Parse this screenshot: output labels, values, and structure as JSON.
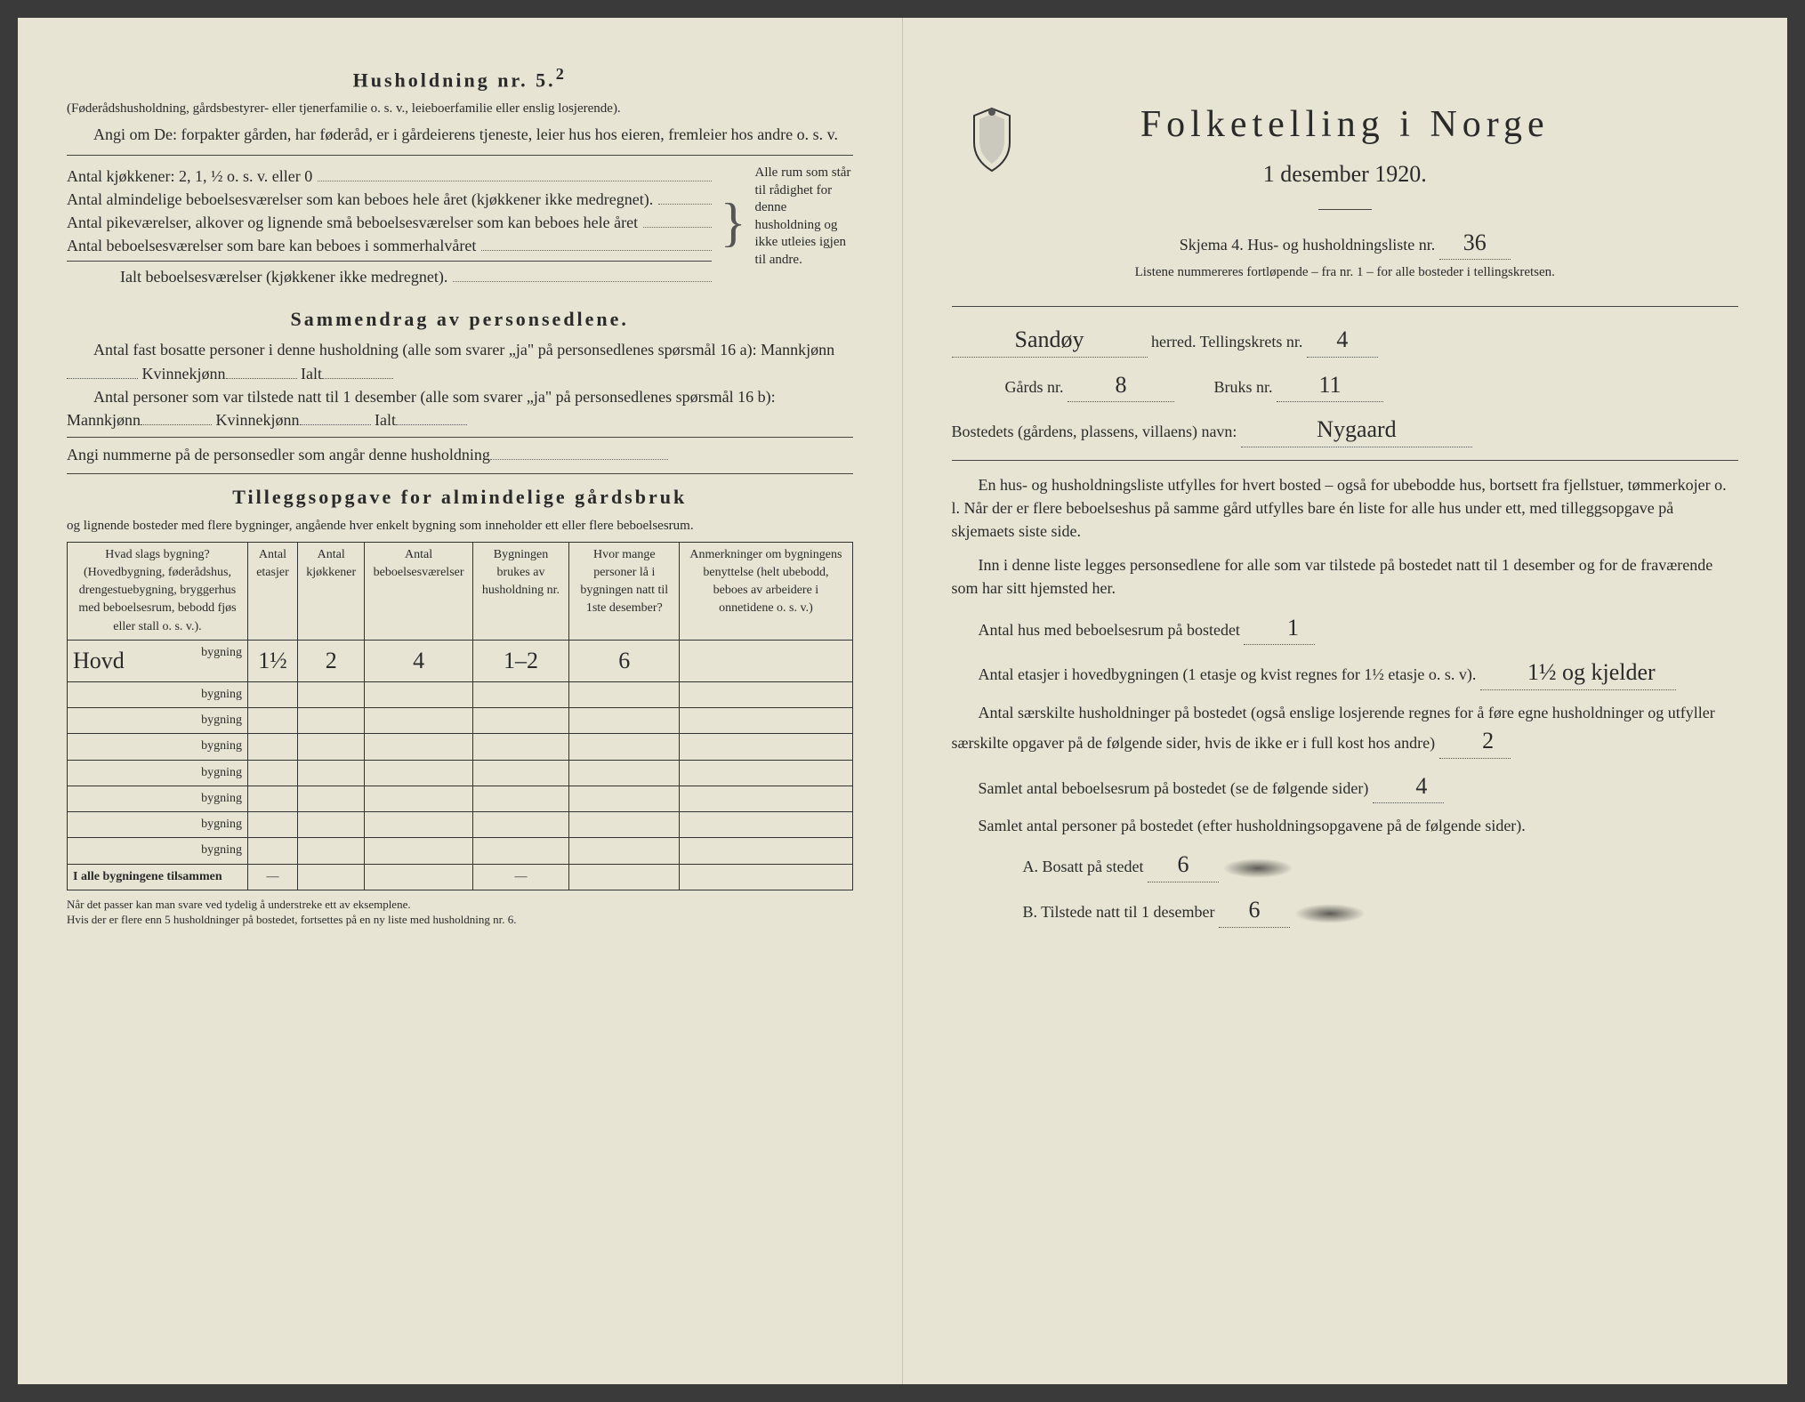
{
  "left": {
    "heading": "Husholdning nr. 5.",
    "heading_sup": "2",
    "par1": "(Føderådshusholdning, gårdsbestyrer- eller tjenerfamilie o. s. v., leieboerfamilie eller enslig losjerende).",
    "par2": "Angi om De:  forpakter gården, har føderåd, er i gårdeierens tjeneste, leier hus hos eieren, fremleier hos andre o. s. v.",
    "row_kjokkener": "Antal kjøkkener: 2, 1, ½ o. s. v. eller 0",
    "row_almindelige": "Antal almindelige beboelsesværelser som kan beboes hele året (kjøkkener ikke medregnet).",
    "row_pike": "Antal pikeværelser, alkover og lignende små beboelsesværelser som kan beboes hele året",
    "row_sommer": "Antal beboelsesværelser som bare kan beboes i sommerhalvåret",
    "row_ialt": "Ialt beboelsesværelser (kjøkkener ikke medregnet).",
    "brace_text": "Alle rum som står til rådighet for denne husholdning og ikke utleies igjen til andre.",
    "sammendrag_heading": "Sammendrag av personsedlene.",
    "sd1": "Antal fast bosatte personer i denne husholdning (alle som svarer „ja\" på personsedlenes spørsmål 16 a): Mannkjønn",
    "sd_kv": "Kvinnekjønn",
    "sd_ialt": "Ialt",
    "sd2": "Antal personer som var tilstede natt til 1 desember (alle som svarer „ja\" på personsedlenes spørsmål 16 b): Mannkjønn",
    "sd3": "Angi nummerne på de personsedler som angår denne husholdning",
    "tillegg_heading": "Tilleggsopgave for almindelige gårdsbruk",
    "tillegg_sub": "og lignende bosteder med flere bygninger, angående hver enkelt bygning som inneholder ett eller flere beboelsesrum.",
    "table": {
      "headers": [
        "Hvad slags bygning?\n(Hovedbygning, føderådshus, drengestuebygning, bryggerhus med beboelsesrum, bebodd fjøs eller stall o. s. v.).",
        "Antal etasjer",
        "Antal kjøkkener",
        "Antal beboelsesværelser",
        "Bygningen brukes av husholdning nr.",
        "Hvor mange personer lå i bygningen natt til 1ste desember?",
        "Anmerkninger om bygningens benyttelse (helt ubebodd, beboes av arbeidere i onnetidene o. s. v.)"
      ],
      "rows": [
        {
          "label_hand": "Hovd",
          "label": "bygning",
          "cells": [
            "1½",
            "2",
            "4",
            "1–2",
            "6",
            ""
          ]
        },
        {
          "label_hand": "",
          "label": "bygning",
          "cells": [
            "",
            "",
            "",
            "",
            "",
            ""
          ]
        },
        {
          "label_hand": "",
          "label": "bygning",
          "cells": [
            "",
            "",
            "",
            "",
            "",
            ""
          ]
        },
        {
          "label_hand": "",
          "label": "bygning",
          "cells": [
            "",
            "",
            "",
            "",
            "",
            ""
          ]
        },
        {
          "label_hand": "",
          "label": "bygning",
          "cells": [
            "",
            "",
            "",
            "",
            "",
            ""
          ]
        },
        {
          "label_hand": "",
          "label": "bygning",
          "cells": [
            "",
            "",
            "",
            "",
            "",
            ""
          ]
        },
        {
          "label_hand": "",
          "label": "bygning",
          "cells": [
            "",
            "",
            "",
            "",
            "",
            ""
          ]
        },
        {
          "label_hand": "",
          "label": "bygning",
          "cells": [
            "",
            "",
            "",
            "",
            "",
            ""
          ]
        }
      ],
      "total_label": "I alle bygningene tilsammen",
      "dash": "—"
    },
    "footnote": "Når det passer kan man svare ved tydelig å understreke ett av eksemplene.\nHvis der er flere enn 5 husholdninger på bostedet, fortsettes på en ny liste med husholdning nr. 6."
  },
  "right": {
    "title": "Folketelling i Norge",
    "date": "1 desember 1920.",
    "skjema_line_pre": "Skjema 4.  Hus- og husholdningsliste nr.",
    "skjema_nr": "36",
    "listene": "Listene nummereres fortløpende – fra nr. 1 – for alle bosteder i tellingskretsen.",
    "herred_value": "Sandøy",
    "herred_label": "herred.  Tellingskrets nr.",
    "krets_nr": "4",
    "gards_label": "Gårds nr.",
    "gards_nr": "8",
    "bruks_label": "Bruks nr.",
    "bruks_nr": "11",
    "bostedets_label": "Bostedets (gårdens, plassens, villaens) navn:",
    "bostedets_value": "Nygaard",
    "par1": "En hus- og husholdningsliste utfylles for hvert bosted – også for ubebodde hus, bortsett fra fjellstuer, tømmerkojer o. l.  Når der er flere beboelseshus på samme gård utfylles bare én liste for alle hus under ett, med tilleggsopgave på skjemaets siste side.",
    "par2": "Inn i denne liste legges personsedlene for alle som var tilstede på bostedet natt til 1 desember og for de fraværende som har sitt hjemsted her.",
    "q1_label": "Antal hus med beboelsesrum på bostedet",
    "q1_val": "1",
    "q2_label_a": "Antal etasjer i hovedbygningen (1 etasje og kvist regnes for 1½ etasje o. s. v).",
    "q2_val": "1½ og kjelder",
    "q3_label": "Antal særskilte husholdninger på bostedet (også enslige losjerende regnes for å føre egne husholdninger og utfyller særskilte opgaver på de følgende sider, hvis de ikke er i full kost hos andre)",
    "q3_val": "2",
    "q4_label": "Samlet antal beboelsesrum på bostedet (se de følgende sider)",
    "q4_val": "4",
    "q5_label": "Samlet antal personer på bostedet (efter husholdningsopgavene på de følgende sider).",
    "qa_label": "A.  Bosatt på stedet",
    "qa_val": "6",
    "qb_label": "B.  Tilstede natt til 1 desember",
    "qb_val": "6"
  },
  "colors": {
    "paper": "#e8e4d4",
    "ink": "#2a2a2a",
    "hand": "#3a3a3a"
  }
}
